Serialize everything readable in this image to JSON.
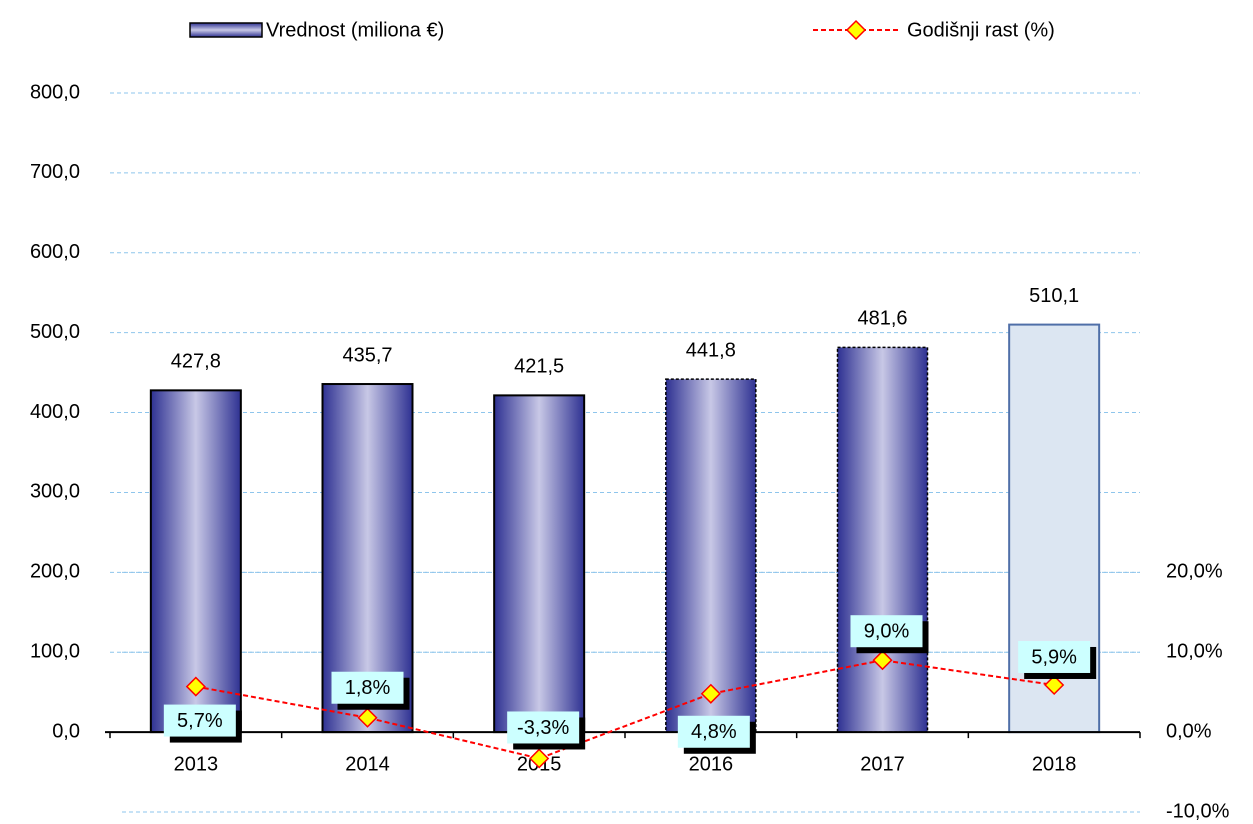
{
  "chart_data": {
    "type": "bar_line",
    "categories": [
      "2013",
      "2014",
      "2015",
      "2016",
      "2017",
      "2018"
    ],
    "series": [
      {
        "name": "Vrednost (miliona €)",
        "type": "bar",
        "color": "#2e3192",
        "bar_colors": [
          "#2e3192",
          "#2e3192",
          "#2e3192",
          "#2e3192",
          "#2e3192",
          "#dce6f2"
        ],
        "bar_gradient": [
          true,
          true,
          true,
          true,
          true,
          false
        ],
        "bar_border": [
          "solid",
          "solid",
          "solid",
          "dashed",
          "dashed",
          "solid"
        ],
        "values": [
          427.8,
          435.7,
          421.5,
          441.8,
          481.6,
          510.1
        ],
        "value_labels": [
          "427,8",
          "435,7",
          "421,5",
          "441,8",
          "481,6",
          "510,1"
        ]
      },
      {
        "name": "Godišnji rast (%)",
        "type": "line",
        "axis": "y2",
        "color": "#ff0000",
        "marker_color": "#ffff00",
        "values": [
          5.7,
          1.8,
          -3.3,
          4.8,
          9.0,
          5.9
        ],
        "value_labels": [
          "5,7%",
          "1,8%",
          "-3,3%",
          "4,8%",
          "9,0%",
          "5,9%"
        ]
      }
    ],
    "ylim": [
      -100,
      800
    ],
    "yticks": [
      {
        "value": 0,
        "label": "0,0"
      },
      {
        "value": 100,
        "label": "100,0"
      },
      {
        "value": 200,
        "label": "200,0"
      },
      {
        "value": 300,
        "label": "300,0"
      },
      {
        "value": 400,
        "label": "400,0"
      },
      {
        "value": 500,
        "label": "500,0"
      },
      {
        "value": 600,
        "label": "600,0"
      },
      {
        "value": 700,
        "label": "700,0"
      },
      {
        "value": 800,
        "label": "800,0"
      }
    ],
    "y2lim": [
      -10,
      80
    ],
    "y2ticks": [
      {
        "value": -10,
        "label": "-10,0%"
      },
      {
        "value": 0,
        "label": "0,0%"
      },
      {
        "value": 10,
        "label": "10,0%"
      },
      {
        "value": 20,
        "label": "20,0%"
      }
    ],
    "grid": true,
    "legend": "top"
  }
}
